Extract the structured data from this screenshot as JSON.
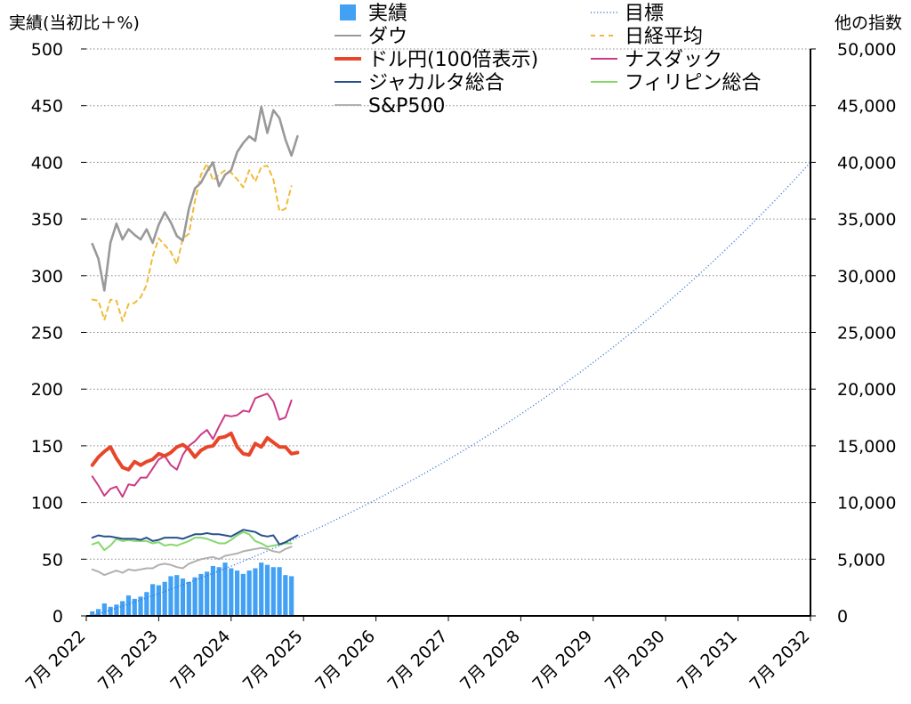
{
  "chart_data": {
    "type": "line",
    "y_left_label": "実績(当初比＋%)",
    "y_right_label": "他の指数",
    "ylim_left": [
      0,
      500
    ],
    "ylim_right": [
      0,
      50000
    ],
    "yticks_left": [
      "0",
      "50",
      "100",
      "150",
      "200",
      "250",
      "300",
      "350",
      "400",
      "450",
      "500"
    ],
    "yticks_right": [
      "0",
      "5,000",
      "10,000",
      "15,000",
      "20,000",
      "25,000",
      "30,000",
      "35,000",
      "40,000",
      "45,000",
      "50,000"
    ],
    "xticks": [
      "7月 2022",
      "7月 2023",
      "7月 2024",
      "7月 2025",
      "7月 2026",
      "7月 2027",
      "7月 2028",
      "7月 2029",
      "7月 2030",
      "7月 2031",
      "7月 2032"
    ],
    "xlim": [
      "2022-07",
      "2032-07"
    ],
    "grid": "horizontal dotted",
    "legend_left": [
      {
        "key": "jisseki",
        "label": "実績",
        "marker": "square"
      },
      {
        "key": "dow",
        "label": "ダウ",
        "marker": "line"
      },
      {
        "key": "usdjpy",
        "label": "ドル円(100倍表示)",
        "marker": "line"
      },
      {
        "key": "jakarta",
        "label": "ジャカルタ総合",
        "marker": "line"
      },
      {
        "key": "sp500",
        "label": "S&P500",
        "marker": "line"
      }
    ],
    "legend_right": [
      {
        "key": "target",
        "label": "目標",
        "marker": "dotted"
      },
      {
        "key": "nikkei",
        "label": "日経平均",
        "marker": "dashed"
      },
      {
        "key": "nasdaq",
        "label": "ナスダック",
        "marker": "line"
      },
      {
        "key": "philippines",
        "label": "フィリピン総合",
        "marker": "line"
      }
    ],
    "colors": {
      "jisseki": "#42a1f4",
      "dow": "#999999",
      "usdjpy": "#e8462a",
      "jakarta": "#27508c",
      "sp500": "#b0b0b0",
      "target": "#2a6fd6",
      "nikkei": "#f0bb38",
      "nasdaq": "#cc3a86",
      "philippines": "#84d86c"
    },
    "x_months_start": "2022-08",
    "series": {
      "jisseki": {
        "axis": "left",
        "type": "bar",
        "values": [
          4,
          6,
          11,
          8,
          10,
          13,
          18,
          15,
          17,
          21,
          28,
          27,
          30,
          35,
          36,
          33,
          30,
          34,
          37,
          39,
          44,
          43,
          47,
          42,
          40,
          37,
          40,
          42,
          47,
          45,
          43,
          43,
          36,
          35
        ]
      },
      "dow": {
        "axis": "right",
        "type": "line",
        "values": [
          32800,
          31500,
          28700,
          32900,
          34600,
          33200,
          34100,
          33600,
          33200,
          34100,
          32900,
          34500,
          35600,
          34700,
          33500,
          33100,
          35900,
          37700,
          38200,
          39200,
          40000,
          37900,
          38900,
          39300,
          40900,
          41700,
          42300,
          41900,
          44900,
          42600,
          44600,
          43900,
          42000,
          40600,
          42300
        ]
      },
      "nikkei": {
        "axis": "right",
        "type": "line",
        "dash": "dashed",
        "values": [
          27900,
          27800,
          26100,
          27900,
          27800,
          26000,
          27500,
          27600,
          28100,
          29200,
          31700,
          33300,
          32700,
          32100,
          31000,
          33300,
          33700,
          36600,
          38900,
          39900,
          38400,
          38900,
          39300,
          39100,
          38500,
          37800,
          39300,
          38300,
          39600,
          39700,
          38500,
          35700,
          35900,
          37900
        ]
      },
      "usdjpy": {
        "axis": "left",
        "type": "line",
        "width": 4,
        "values": [
          133,
          140,
          145,
          149,
          139,
          131,
          129,
          136,
          133,
          136,
          138,
          143,
          141,
          144,
          149,
          151,
          147,
          140,
          146,
          149,
          150,
          157,
          158,
          161,
          149,
          143,
          142,
          152,
          149,
          157,
          153,
          149,
          149,
          143,
          144
        ]
      },
      "nasdaq": {
        "axis": "right",
        "type": "line",
        "values": [
          12300,
          11500,
          10600,
          11200,
          11400,
          10500,
          11600,
          11500,
          12200,
          12200,
          13000,
          13800,
          14100,
          13300,
          12900,
          14200,
          15000,
          15400,
          16000,
          16400,
          15600,
          16700,
          17700,
          17600,
          17700,
          18100,
          18000,
          19200,
          19400,
          19600,
          18900,
          17300,
          17500,
          19000
        ]
      },
      "jakarta": {
        "axis": "right",
        "type": "line",
        "values": [
          6900,
          7100,
          7000,
          7000,
          6900,
          6800,
          6800,
          6800,
          6700,
          6900,
          6600,
          6700,
          6900,
          6900,
          6900,
          6800,
          7000,
          7200,
          7200,
          7300,
          7200,
          7200,
          7100,
          7000,
          7300,
          7600,
          7500,
          7400,
          7100,
          7000,
          7100,
          6300,
          6500,
          6800,
          7100
        ]
      },
      "philippines": {
        "axis": "right",
        "type": "line",
        "values": [
          6300,
          6500,
          5800,
          6200,
          6800,
          6600,
          6700,
          6600,
          6600,
          6600,
          6400,
          6500,
          6200,
          6300,
          6200,
          6400,
          6600,
          6900,
          6900,
          6800,
          6600,
          6400,
          6400,
          6700,
          7100,
          7400,
          7200,
          6600,
          6400,
          6100,
          6200,
          6300,
          6400,
          6400
        ]
      },
      "sp500": {
        "axis": "right",
        "type": "line",
        "values": [
          4100,
          3900,
          3600,
          3800,
          4000,
          3800,
          4100,
          4000,
          4100,
          4200,
          4200,
          4500,
          4600,
          4500,
          4300,
          4200,
          4600,
          4800,
          5000,
          5100,
          5200,
          5000,
          5300,
          5400,
          5500,
          5700,
          5800,
          5900,
          6000,
          5900,
          5700,
          5600,
          5900,
          6100
        ]
      },
      "target": {
        "axis": "left",
        "type": "line",
        "dash": "dotted",
        "start": {
          "x": "2022-08",
          "y": 0
        },
        "end": {
          "x": "2032-07",
          "y": 400
        },
        "curve": "exponential"
      }
    }
  }
}
